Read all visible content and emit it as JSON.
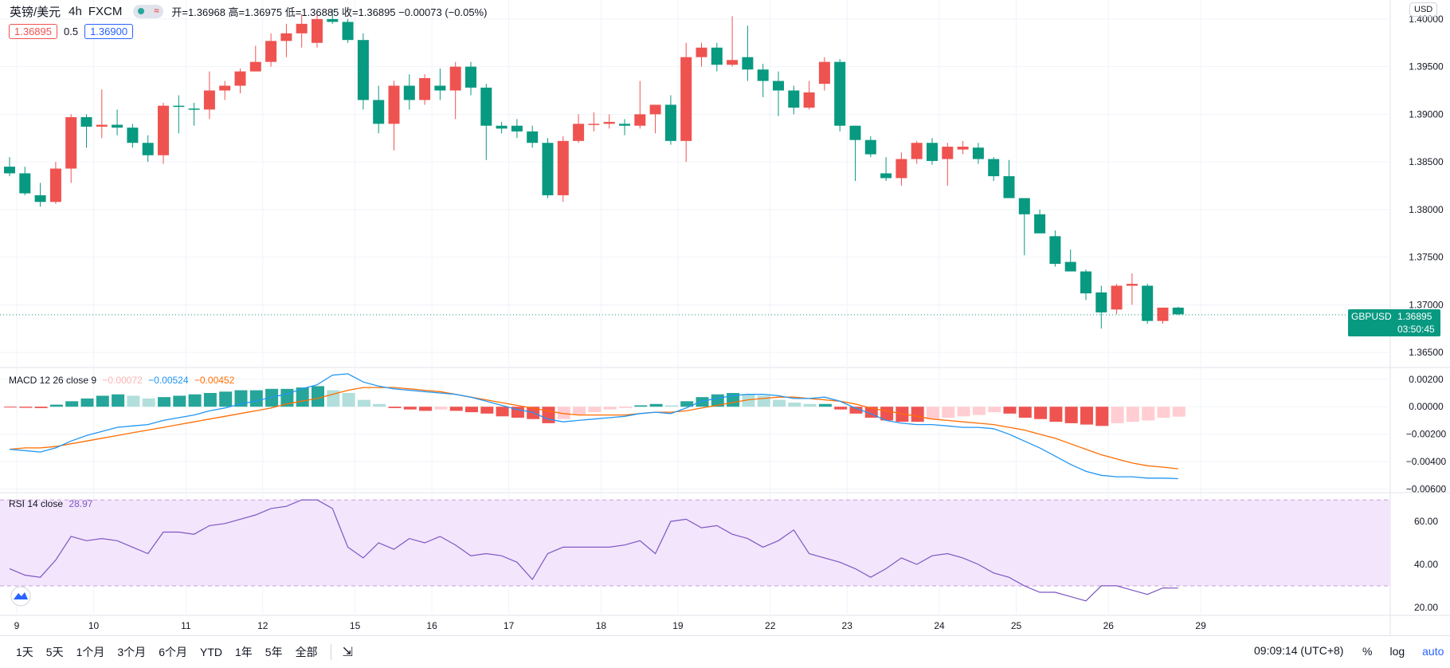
{
  "header": {
    "symbol": "英镑/美元",
    "timeframe": "4h",
    "source": "FXCM",
    "ohlc_text": "开=1.36968 高=1.36975 低=1.36885 收=1.36895 −0.00073 (−0.05%)",
    "bid": "1.36895",
    "spread": "0.5",
    "ask": "1.36900",
    "currency": "USD"
  },
  "price_tag": {
    "symbol": "GBPUSD",
    "price": "1.36895",
    "countdown": "03:50:45"
  },
  "macd_label": {
    "name": "MACD 12 26 close 9",
    "hist": "−0.00072",
    "macd": "−0.00524",
    "signal": "−0.00452"
  },
  "rsi_label": {
    "name": "RSI 14 close",
    "value": "28.97"
  },
  "colors": {
    "up": "#ef5350",
    "down": "#089981",
    "macd_line": "#2196f3",
    "signal_line": "#ff6d00",
    "rsi_line": "#7e57c2",
    "rsi_band": "#f3e5fc"
  },
  "bottom_bar": {
    "ranges": [
      "1天",
      "5天",
      "1个月",
      "3个月",
      "6个月",
      "YTD",
      "1年",
      "5年",
      "全部"
    ],
    "goto_icon": "calendar-range-icon",
    "clock": "09:09:14 (UTC+8)",
    "percent": "%",
    "log": "log",
    "auto": "auto",
    "settings_icon": "gear-icon"
  },
  "chart_data": [
    {
      "type": "candlestick",
      "title": "英镑/美元 4h FXCM",
      "y_ticks": [
        "1.36500",
        "1.37000",
        "1.37500",
        "1.38000",
        "1.38500",
        "1.39000",
        "1.39500",
        "1.40000"
      ],
      "ylim": [
        1.3635,
        1.402
      ],
      "x_ticks": [
        "9",
        "10",
        "11",
        "12",
        "15",
        "16",
        "17",
        "18",
        "19",
        "22",
        "23",
        "24",
        "25",
        "26",
        "29"
      ],
      "last_price": 1.36895,
      "candles": [
        [
          1.3845,
          1.3855,
          1.3835,
          1.3838
        ],
        [
          1.3838,
          1.3845,
          1.3815,
          1.3817
        ],
        [
          1.3815,
          1.3828,
          1.3803,
          1.3808
        ],
        [
          1.3808,
          1.385,
          1.3806,
          1.3843
        ],
        [
          1.3843,
          1.39,
          1.3828,
          1.3897
        ],
        [
          1.3897,
          1.39,
          1.3865,
          1.3887
        ],
        [
          1.3887,
          1.3926,
          1.3875,
          1.3889
        ],
        [
          1.3889,
          1.3905,
          1.3878,
          1.3886
        ],
        [
          1.3886,
          1.389,
          1.3865,
          1.387
        ],
        [
          1.387,
          1.3878,
          1.385,
          1.3857
        ],
        [
          1.3857,
          1.3912,
          1.3848,
          1.3909
        ],
        [
          1.3909,
          1.392,
          1.388,
          1.3908
        ],
        [
          1.3906,
          1.3912,
          1.3888,
          1.3905
        ],
        [
          1.3905,
          1.3945,
          1.3895,
          1.3925
        ],
        [
          1.3925,
          1.3935,
          1.3915,
          1.393
        ],
        [
          1.393,
          1.3948,
          1.3922,
          1.3945
        ],
        [
          1.3945,
          1.3972,
          1.3945,
          1.3955
        ],
        [
          1.3955,
          1.3985,
          1.395,
          1.3977
        ],
        [
          1.3977,
          1.3995,
          1.396,
          1.3985
        ],
        [
          1.3985,
          1.4005,
          1.397,
          1.3995
        ],
        [
          1.3975,
          1.4005,
          1.397,
          1.4
        ],
        [
          1.4,
          1.401,
          1.3995,
          1.3997
        ],
        [
          1.3997,
          1.4,
          1.3975,
          1.3978
        ],
        [
          1.3978,
          1.3985,
          1.3905,
          1.3915
        ],
        [
          1.3915,
          1.393,
          1.388,
          1.389
        ],
        [
          1.389,
          1.3935,
          1.3862,
          1.393
        ],
        [
          1.393,
          1.3942,
          1.3905,
          1.3915
        ],
        [
          1.3915,
          1.3942,
          1.391,
          1.3938
        ],
        [
          1.393,
          1.3948,
          1.3915,
          1.3925
        ],
        [
          1.3925,
          1.3955,
          1.3895,
          1.395
        ],
        [
          1.395,
          1.3955,
          1.392,
          1.3928
        ],
        [
          1.3928,
          1.3932,
          1.3852,
          1.3888
        ],
        [
          1.3888,
          1.3892,
          1.388,
          1.3885
        ],
        [
          1.3888,
          1.3895,
          1.3875,
          1.3882
        ],
        [
          1.3882,
          1.3888,
          1.3865,
          1.387
        ],
        [
          1.387,
          1.3875,
          1.3812,
          1.3815
        ],
        [
          1.3815,
          1.3877,
          1.3808,
          1.3872
        ],
        [
          1.3872,
          1.39,
          1.387,
          1.389
        ],
        [
          1.389,
          1.3902,
          1.3882,
          1.389
        ],
        [
          1.389,
          1.39,
          1.3885,
          1.3892
        ],
        [
          1.389,
          1.3895,
          1.3878,
          1.3888
        ],
        [
          1.3888,
          1.3935,
          1.3885,
          1.39
        ],
        [
          1.39,
          1.391,
          1.388,
          1.391
        ],
        [
          1.391,
          1.392,
          1.3868,
          1.3872
        ],
        [
          1.3872,
          1.3975,
          1.385,
          1.396
        ],
        [
          1.396,
          1.3975,
          1.395,
          1.397
        ],
        [
          1.397,
          1.3975,
          1.3945,
          1.3952
        ],
        [
          1.3952,
          1.4003,
          1.395,
          1.3957
        ],
        [
          1.396,
          1.3993,
          1.3935,
          1.3947
        ],
        [
          1.3947,
          1.3953,
          1.3918,
          1.3935
        ],
        [
          1.3935,
          1.3945,
          1.3898,
          1.3925
        ],
        [
          1.3925,
          1.393,
          1.39,
          1.3907
        ],
        [
          1.3907,
          1.3935,
          1.3905,
          1.3923
        ],
        [
          1.3932,
          1.396,
          1.3925,
          1.3955
        ],
        [
          1.3955,
          1.3958,
          1.3882,
          1.3888
        ],
        [
          1.3888,
          1.3888,
          1.383,
          1.3873
        ],
        [
          1.3873,
          1.3877,
          1.3855,
          1.3858
        ],
        [
          1.3838,
          1.3855,
          1.383,
          1.3833
        ],
        [
          1.3833,
          1.386,
          1.3825,
          1.3853
        ],
        [
          1.3853,
          1.3872,
          1.3848,
          1.387
        ],
        [
          1.387,
          1.3875,
          1.3847,
          1.3851
        ],
        [
          1.3853,
          1.387,
          1.3825,
          1.3866
        ],
        [
          1.3863,
          1.3872,
          1.3858,
          1.3866
        ],
        [
          1.3865,
          1.387,
          1.3848,
          1.3853
        ],
        [
          1.3853,
          1.3855,
          1.383,
          1.3835
        ],
        [
          1.3835,
          1.3852,
          1.3812,
          1.3812
        ],
        [
          1.3812,
          1.3812,
          1.3752,
          1.3795
        ],
        [
          1.3795,
          1.38,
          1.3775,
          1.3775
        ],
        [
          1.3772,
          1.3778,
          1.374,
          1.3743
        ],
        [
          1.3745,
          1.3758,
          1.3735,
          1.3735
        ],
        [
          1.3735,
          1.3737,
          1.3705,
          1.3712
        ],
        [
          1.3713,
          1.372,
          1.3675,
          1.3692
        ],
        [
          1.3695,
          1.3722,
          1.369,
          1.372
        ],
        [
          1.372,
          1.3733,
          1.37,
          1.3722
        ],
        [
          1.372,
          1.3722,
          1.368,
          1.3683
        ],
        [
          1.3683,
          1.3697,
          1.368,
          1.3697
        ],
        [
          1.3697,
          1.3698,
          1.3689,
          1.369
        ]
      ]
    },
    {
      "type": "line",
      "title": "MACD 12 26 close 9",
      "y_ticks": [
        "0.00200",
        "0.00000",
        "−0.00200",
        "−0.00400",
        "−0.00600"
      ],
      "ylim": [
        -0.0062,
        0.0028
      ],
      "series": [
        {
          "name": "histogram",
          "values": [
            -5e-05,
            -8e-05,
            -0.0001,
            0.00015,
            0.0004,
            0.0006,
            0.0008,
            0.0009,
            0.0008,
            0.0006,
            0.0007,
            0.0008,
            0.0009,
            0.001,
            0.0011,
            0.0012,
            0.0012,
            0.0013,
            0.0013,
            0.0014,
            0.0015,
            0.0012,
            0.001,
            0.0005,
            0.0002,
            -0.0001,
            -0.0002,
            -0.0003,
            -0.0002,
            -0.0003,
            -0.0004,
            -0.0005,
            -0.0007,
            -0.0008,
            -0.0009,
            -0.0012,
            -0.0009,
            -0.0006,
            -0.0004,
            -0.0002,
            -0.0001,
            0.0001,
            0.0002,
            0.0001,
            0.0004,
            0.0007,
            0.0009,
            0.001,
            0.0009,
            0.0008,
            0.0005,
            0.0003,
            0.0002,
            0.0002,
            -0.0002,
            -0.0005,
            -0.0008,
            -0.001,
            -0.0011,
            -0.0011,
            -0.0009,
            -0.0008,
            -0.0007,
            -0.0006,
            -0.0004,
            -0.0005,
            -0.0008,
            -0.0009,
            -0.0011,
            -0.0012,
            -0.0013,
            -0.0014,
            -0.0012,
            -0.0011,
            -0.001,
            -0.0008,
            -0.00072
          ]
        },
        {
          "name": "macd",
          "values": [
            -0.0031,
            -0.0032,
            -0.0033,
            -0.003,
            -0.0025,
            -0.0021,
            -0.0018,
            -0.0015,
            -0.0014,
            -0.0013,
            -0.001,
            -0.0008,
            -0.0006,
            -0.0003,
            -0.0001,
            0.0002,
            0.0004,
            0.0007,
            0.0009,
            0.0013,
            0.0016,
            0.0023,
            0.0024,
            0.0018,
            0.0015,
            0.0013,
            0.0012,
            0.0011,
            0.001,
            0.0009,
            0.0007,
            0.0004,
            0.0001,
            -0.0002,
            -0.0004,
            -0.0009,
            -0.0011,
            -0.001,
            -0.0009,
            -0.0008,
            -0.0007,
            -0.0005,
            -0.0004,
            -0.0005,
            -0.0001,
            0.0004,
            0.0006,
            0.0008,
            0.0009,
            0.0009,
            0.0008,
            0.0006,
            0.0006,
            0.0007,
            0.0004,
            -0.0001,
            -0.0005,
            -0.001,
            -0.0012,
            -0.0013,
            -0.0013,
            -0.0014,
            -0.0015,
            -0.0015,
            -0.0016,
            -0.002,
            -0.0025,
            -0.003,
            -0.0036,
            -0.0042,
            -0.0047,
            -0.005,
            -0.0051,
            -0.0051,
            -0.0052,
            -0.0052,
            -0.00524
          ]
        },
        {
          "name": "signal",
          "values": [
            -0.0031,
            -0.003,
            -0.003,
            -0.0029,
            -0.0027,
            -0.0025,
            -0.0023,
            -0.0021,
            -0.0019,
            -0.0017,
            -0.0015,
            -0.0013,
            -0.0011,
            -0.0009,
            -0.0007,
            -0.0005,
            -0.0003,
            -0.0001,
            0.0002,
            0.0004,
            0.0006,
            0.0009,
            0.0012,
            0.0014,
            0.0014,
            0.0014,
            0.0013,
            0.0012,
            0.0011,
            0.0009,
            0.0007,
            0.0005,
            0.0003,
            0.0001,
            -0.0001,
            -0.0003,
            -0.0005,
            -0.0006,
            -0.0006,
            -0.0006,
            -0.0006,
            -0.0005,
            -0.0004,
            -0.0004,
            -0.0003,
            -0.0001,
            0.0001,
            0.0003,
            0.0005,
            0.0006,
            0.0007,
            0.0007,
            0.0006,
            0.0005,
            0.0004,
            0.0002,
            -0.0001,
            -0.0003,
            -0.0005,
            -0.0007,
            -0.0009,
            -0.001,
            -0.0011,
            -0.0012,
            -0.0013,
            -0.0015,
            -0.0017,
            -0.002,
            -0.0023,
            -0.0027,
            -0.0031,
            -0.0035,
            -0.0038,
            -0.0041,
            -0.0043,
            -0.0044,
            -0.00452
          ]
        }
      ]
    },
    {
      "type": "line",
      "title": "RSI 14 close",
      "y_ticks": [
        "60.00",
        "40.00",
        "20.00"
      ],
      "ylim": [
        17,
        73
      ],
      "bands": [
        30,
        70
      ],
      "series": [
        {
          "name": "RSI",
          "values": [
            38,
            35,
            34,
            42,
            53,
            51,
            52,
            51,
            48,
            45,
            55,
            55,
            54,
            58,
            59,
            61,
            63,
            66,
            67,
            70,
            70,
            66,
            48,
            43,
            50,
            47,
            52,
            50,
            53,
            49,
            44,
            45,
            44,
            41,
            33,
            45,
            48,
            48,
            48,
            48,
            49,
            51,
            45,
            60,
            61,
            57,
            58,
            54,
            52,
            48,
            51,
            56,
            45,
            43,
            41,
            38,
            34,
            38,
            43,
            40,
            44,
            45,
            43,
            40,
            36,
            34,
            30,
            27,
            27,
            25,
            23,
            30,
            30,
            28,
            26,
            29,
            28.97
          ]
        }
      ]
    }
  ]
}
